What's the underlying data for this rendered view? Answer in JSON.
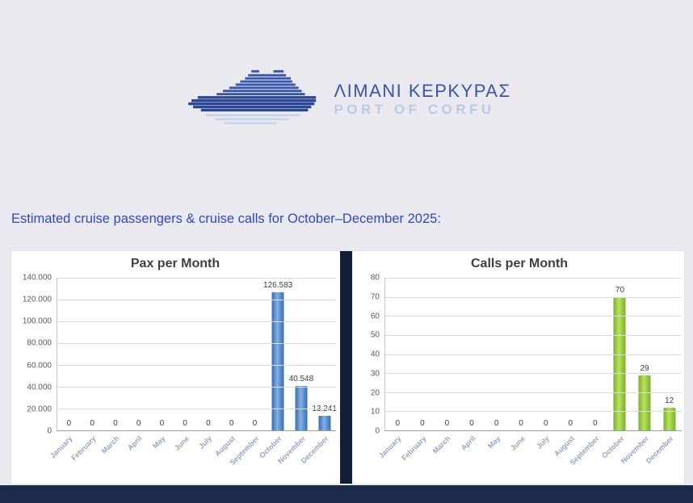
{
  "logo": {
    "title_greek": "ΛΙΜΑΝΙ ΚΕΡΚΥΡΑΣ",
    "subtitle": "PORT OF CORFU"
  },
  "page": {
    "heading": "Estimated cruise passengers & cruise calls for October–December 2025:"
  },
  "colors": {
    "heading_text": "#2f49c5",
    "divider": "#111f38",
    "bottom_bar": "#1c2b4c",
    "pax_bar": "#4a86c8",
    "calls_bar": "#8ec63f"
  },
  "chart_data": [
    {
      "type": "bar",
      "title": "Pax per Month",
      "categories": [
        "January",
        "February",
        "March",
        "April",
        "May",
        "June",
        "July",
        "August",
        "September",
        "October",
        "November",
        "December"
      ],
      "values": [
        0,
        0,
        0,
        0,
        0,
        0,
        0,
        0,
        0,
        126583,
        40548,
        13241
      ],
      "value_labels": [
        "0",
        "0",
        "0",
        "0",
        "0",
        "0",
        "0",
        "0",
        "0",
        "126.583",
        "40.548",
        "13.241"
      ],
      "ymax": 140000,
      "yticks": [
        "140.000",
        "120.000",
        "100.000",
        "80.000",
        "60.000",
        "40.000",
        "20.000",
        "0"
      ],
      "ylim": [
        0,
        140000
      ],
      "grid": true,
      "legend": "none",
      "xlabel": "",
      "ylabel": "",
      "bar_color_dark": "#3a6ab2",
      "bar_color_light": "#7fb2e2"
    },
    {
      "type": "bar",
      "title": "Calls per Month",
      "categories": [
        "January",
        "February",
        "March",
        "April",
        "May",
        "June",
        "July",
        "August",
        "September",
        "October",
        "November",
        "December"
      ],
      "values": [
        0,
        0,
        0,
        0,
        0,
        0,
        0,
        0,
        0,
        70,
        29,
        12
      ],
      "value_labels": [
        "0",
        "0",
        "0",
        "0",
        "0",
        "0",
        "0",
        "0",
        "0",
        "70",
        "29",
        "12"
      ],
      "ymax": 80,
      "yticks": [
        "80",
        "70",
        "60",
        "50",
        "40",
        "30",
        "20",
        "10",
        "0"
      ],
      "ylim": [
        0,
        80
      ],
      "grid": true,
      "legend": "none",
      "xlabel": "",
      "ylabel": "",
      "bar_color_dark": "#76b02a",
      "bar_color_light": "#bce05e"
    }
  ]
}
